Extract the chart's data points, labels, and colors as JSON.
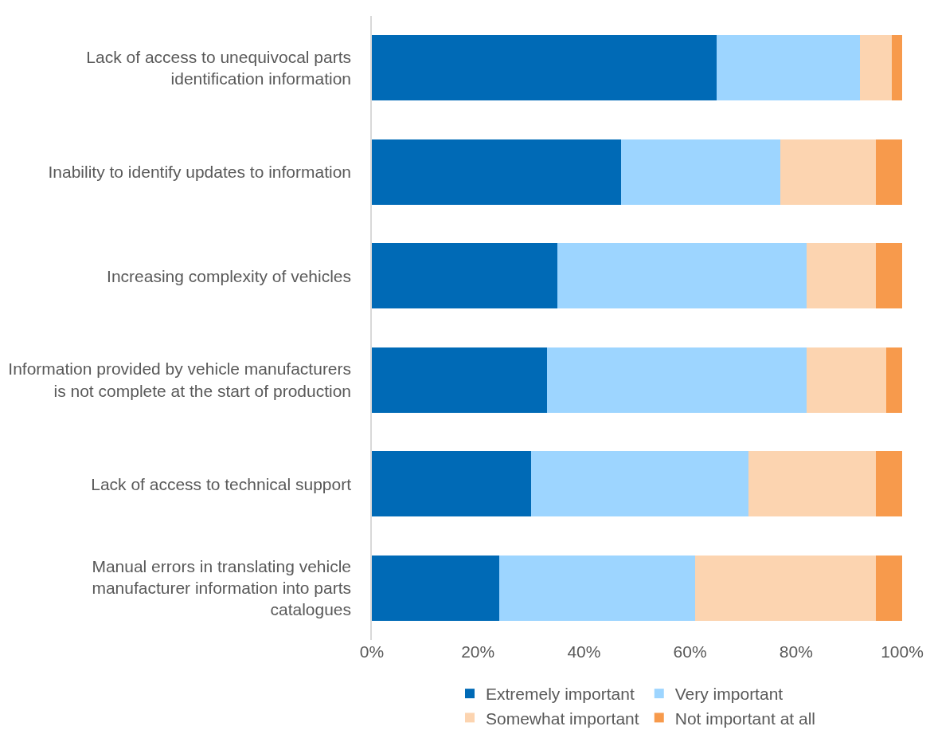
{
  "chart_data": {
    "type": "bar",
    "orientation": "horizontal",
    "stacked": true,
    "categories": [
      "Lack of access to unequivocal parts identification information",
      "Inability to identify updates to information",
      "Increasing complexity of vehicles",
      "Information provided by vehicle manufacturers is not complete at the start of production",
      "Lack of access to technical support",
      "Manual errors in translating vehicle manufacturer information into parts catalogues"
    ],
    "series": [
      {
        "name": "Extremely important",
        "color": "#006ab6",
        "values": [
          65,
          47,
          35,
          33,
          30,
          24
        ]
      },
      {
        "name": "Very important",
        "color": "#9dd5ff",
        "values": [
          27,
          30,
          47,
          49,
          41,
          37
        ]
      },
      {
        "name": "Somewhat important",
        "color": "#fcd4b0",
        "values": [
          6,
          18,
          13,
          15,
          24,
          34
        ]
      },
      {
        "name": "Not important at all",
        "color": "#f79a4c",
        "values": [
          2,
          5,
          5,
          3,
          5,
          5
        ]
      }
    ],
    "xlim": [
      0,
      100
    ],
    "xticks": [
      {
        "value": 0,
        "label": "0%"
      },
      {
        "value": 20,
        "label": "20%"
      },
      {
        "value": 40,
        "label": "40%"
      },
      {
        "value": 60,
        "label": "60%"
      },
      {
        "value": 80,
        "label": "80%"
      },
      {
        "value": 100,
        "label": "100%"
      }
    ],
    "grid": false,
    "legend": "bottom"
  }
}
